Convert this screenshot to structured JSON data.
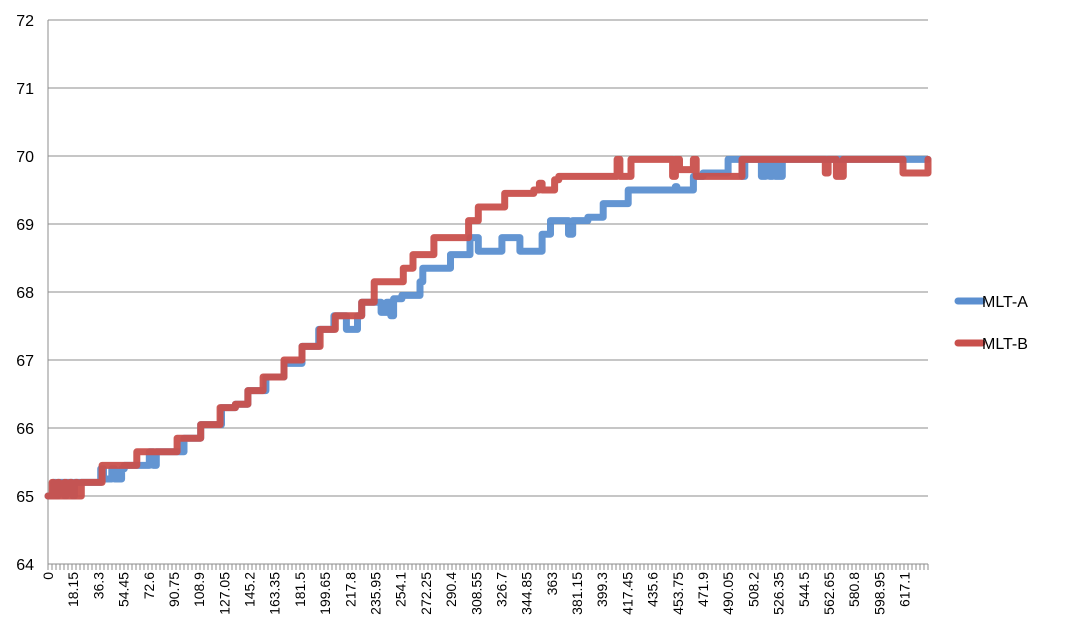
{
  "chart_data": {
    "type": "line",
    "title": "",
    "xlabel": "",
    "ylabel": "",
    "ylim": [
      64,
      72
    ],
    "yticks": [
      64,
      65,
      66,
      67,
      68,
      69,
      70,
      71,
      72
    ],
    "xlim": [
      0,
      634
    ],
    "xtick_labels": [
      "0",
      "18.15",
      "36.3",
      "54.45",
      "72.6",
      "90.75",
      "108.9",
      "127.05",
      "145.2",
      "163.35",
      "181.5",
      "199.65",
      "217.8",
      "235.95",
      "254.1",
      "272.25",
      "290.4",
      "308.55",
      "326.7",
      "344.85",
      "363",
      "381.15",
      "399.3",
      "417.45",
      "435.6",
      "453.75",
      "471.9",
      "490.05",
      "508.2",
      "526.35",
      "544.5",
      "562.65",
      "580.8",
      "598.95",
      "617.1"
    ],
    "xtick_step": 18.15,
    "grid": true,
    "legend_position": "right",
    "series": [
      {
        "name": "MLT-A",
        "color": "#5B8FD0",
        "x": [
          0,
          3,
          4,
          6,
          7,
          12,
          13,
          18,
          19,
          25,
          38,
          40,
          46,
          48,
          53,
          55,
          70,
          73,
          76,
          78,
          95,
          98,
          108,
          110,
          121,
          125,
          131,
          135,
          141,
          144,
          152,
          157,
          167,
          170,
          180,
          183,
          192,
          195,
          203,
          206,
          213,
          215,
          223,
          226,
          236,
          240,
          244,
          247,
          249,
          253,
          255,
          265,
          268,
          270,
          283,
          286,
          290,
          301,
          304,
          309,
          310,
          325,
          327,
          330,
          339,
          340,
          353,
          356,
          361,
          362,
          366,
          375,
          378,
          384,
          385,
          389,
          391,
          395,
          400,
          403,
          410,
          412,
          418,
          419,
          452,
          453,
          465,
          466,
          472,
          487,
          490,
          500,
          502,
          514,
          517,
          520,
          522,
          524,
          526,
          527,
          529,
          634
        ],
        "y": [
          65.0,
          65.0,
          65.2,
          65.0,
          65.2,
          65.0,
          65.2,
          65.0,
          65.2,
          65.2,
          65.4,
          65.25,
          65.4,
          65.25,
          65.4,
          65.45,
          65.45,
          65.65,
          65.45,
          65.65,
          65.65,
          65.85,
          65.85,
          66.05,
          66.05,
          66.3,
          66.3,
          66.35,
          66.35,
          66.55,
          66.55,
          66.75,
          66.75,
          66.95,
          66.95,
          67.2,
          67.2,
          67.45,
          67.45,
          67.65,
          67.65,
          67.45,
          67.65,
          67.85,
          67.85,
          67.7,
          67.85,
          67.65,
          67.9,
          67.9,
          67.95,
          67.95,
          68.15,
          68.35,
          68.35,
          68.35,
          68.55,
          68.55,
          68.8,
          68.8,
          68.6,
          68.6,
          68.8,
          68.8,
          68.8,
          68.6,
          68.6,
          68.85,
          68.85,
          69.05,
          69.05,
          68.85,
          69.05,
          69.05,
          69.05,
          69.1,
          69.1,
          69.1,
          69.3,
          69.3,
          69.3,
          69.3,
          69.5,
          69.5,
          69.55,
          69.5,
          69.7,
          69.7,
          69.75,
          69.75,
          69.95,
          69.7,
          69.95,
          69.7,
          69.95,
          69.7,
          69.95,
          69.7,
          69.95,
          69.7,
          69.95,
          69.95
        ]
      },
      {
        "name": "MLT-B",
        "color": "#C9504C",
        "x": [
          0,
          3,
          4,
          7,
          8,
          12,
          13,
          16,
          17,
          20,
          21,
          24,
          25,
          38,
          39,
          59,
          64,
          90,
          93,
          98,
          108,
          110,
          121,
          124,
          131,
          135,
          141,
          144,
          152,
          155,
          167,
          170,
          180,
          183,
          192,
          196,
          203,
          207,
          213,
          216,
          223,
          226,
          232,
          235,
          244,
          246,
          253,
          256,
          260,
          263,
          275,
          278,
          290,
          292,
          299,
          303,
          307,
          310,
          323,
          326,
          329,
          331,
          350,
          352,
          354,
          356,
          365,
          368,
          383,
          386,
          410,
          412,
          420,
          450,
          452,
          455,
          465,
          467,
          500,
          503,
          505,
          560,
          562,
          565,
          568,
          573,
          576,
          579,
          582,
          585,
          587,
          590,
          614,
          616,
          634
        ],
        "y": [
          65.0,
          65.2,
          65.0,
          65.2,
          65.0,
          65.2,
          65.0,
          65.2,
          65.0,
          65.2,
          65.0,
          65.2,
          65.2,
          65.2,
          65.45,
          65.45,
          65.65,
          65.65,
          65.85,
          65.85,
          65.85,
          66.05,
          66.05,
          66.3,
          66.3,
          66.35,
          66.35,
          66.55,
          66.55,
          66.75,
          66.75,
          67.0,
          67.0,
          67.2,
          67.2,
          67.45,
          67.45,
          67.65,
          67.65,
          67.65,
          67.65,
          67.85,
          67.85,
          68.15,
          68.15,
          68.15,
          68.15,
          68.35,
          68.35,
          68.55,
          68.55,
          68.8,
          68.8,
          68.8,
          68.8,
          69.05,
          69.05,
          69.25,
          69.25,
          69.25,
          69.45,
          69.45,
          69.5,
          69.5,
          69.6,
          69.5,
          69.65,
          69.7,
          69.7,
          69.7,
          69.95,
          69.7,
          69.95,
          69.7,
          69.95,
          69.8,
          69.95,
          69.7,
          69.95,
          69.95,
          69.95,
          69.75,
          69.95,
          69.95,
          69.7,
          69.95,
          69.95,
          69.95,
          69.95,
          69.95,
          69.95,
          69.95,
          69.95,
          69.75,
          69.95
        ]
      }
    ]
  }
}
